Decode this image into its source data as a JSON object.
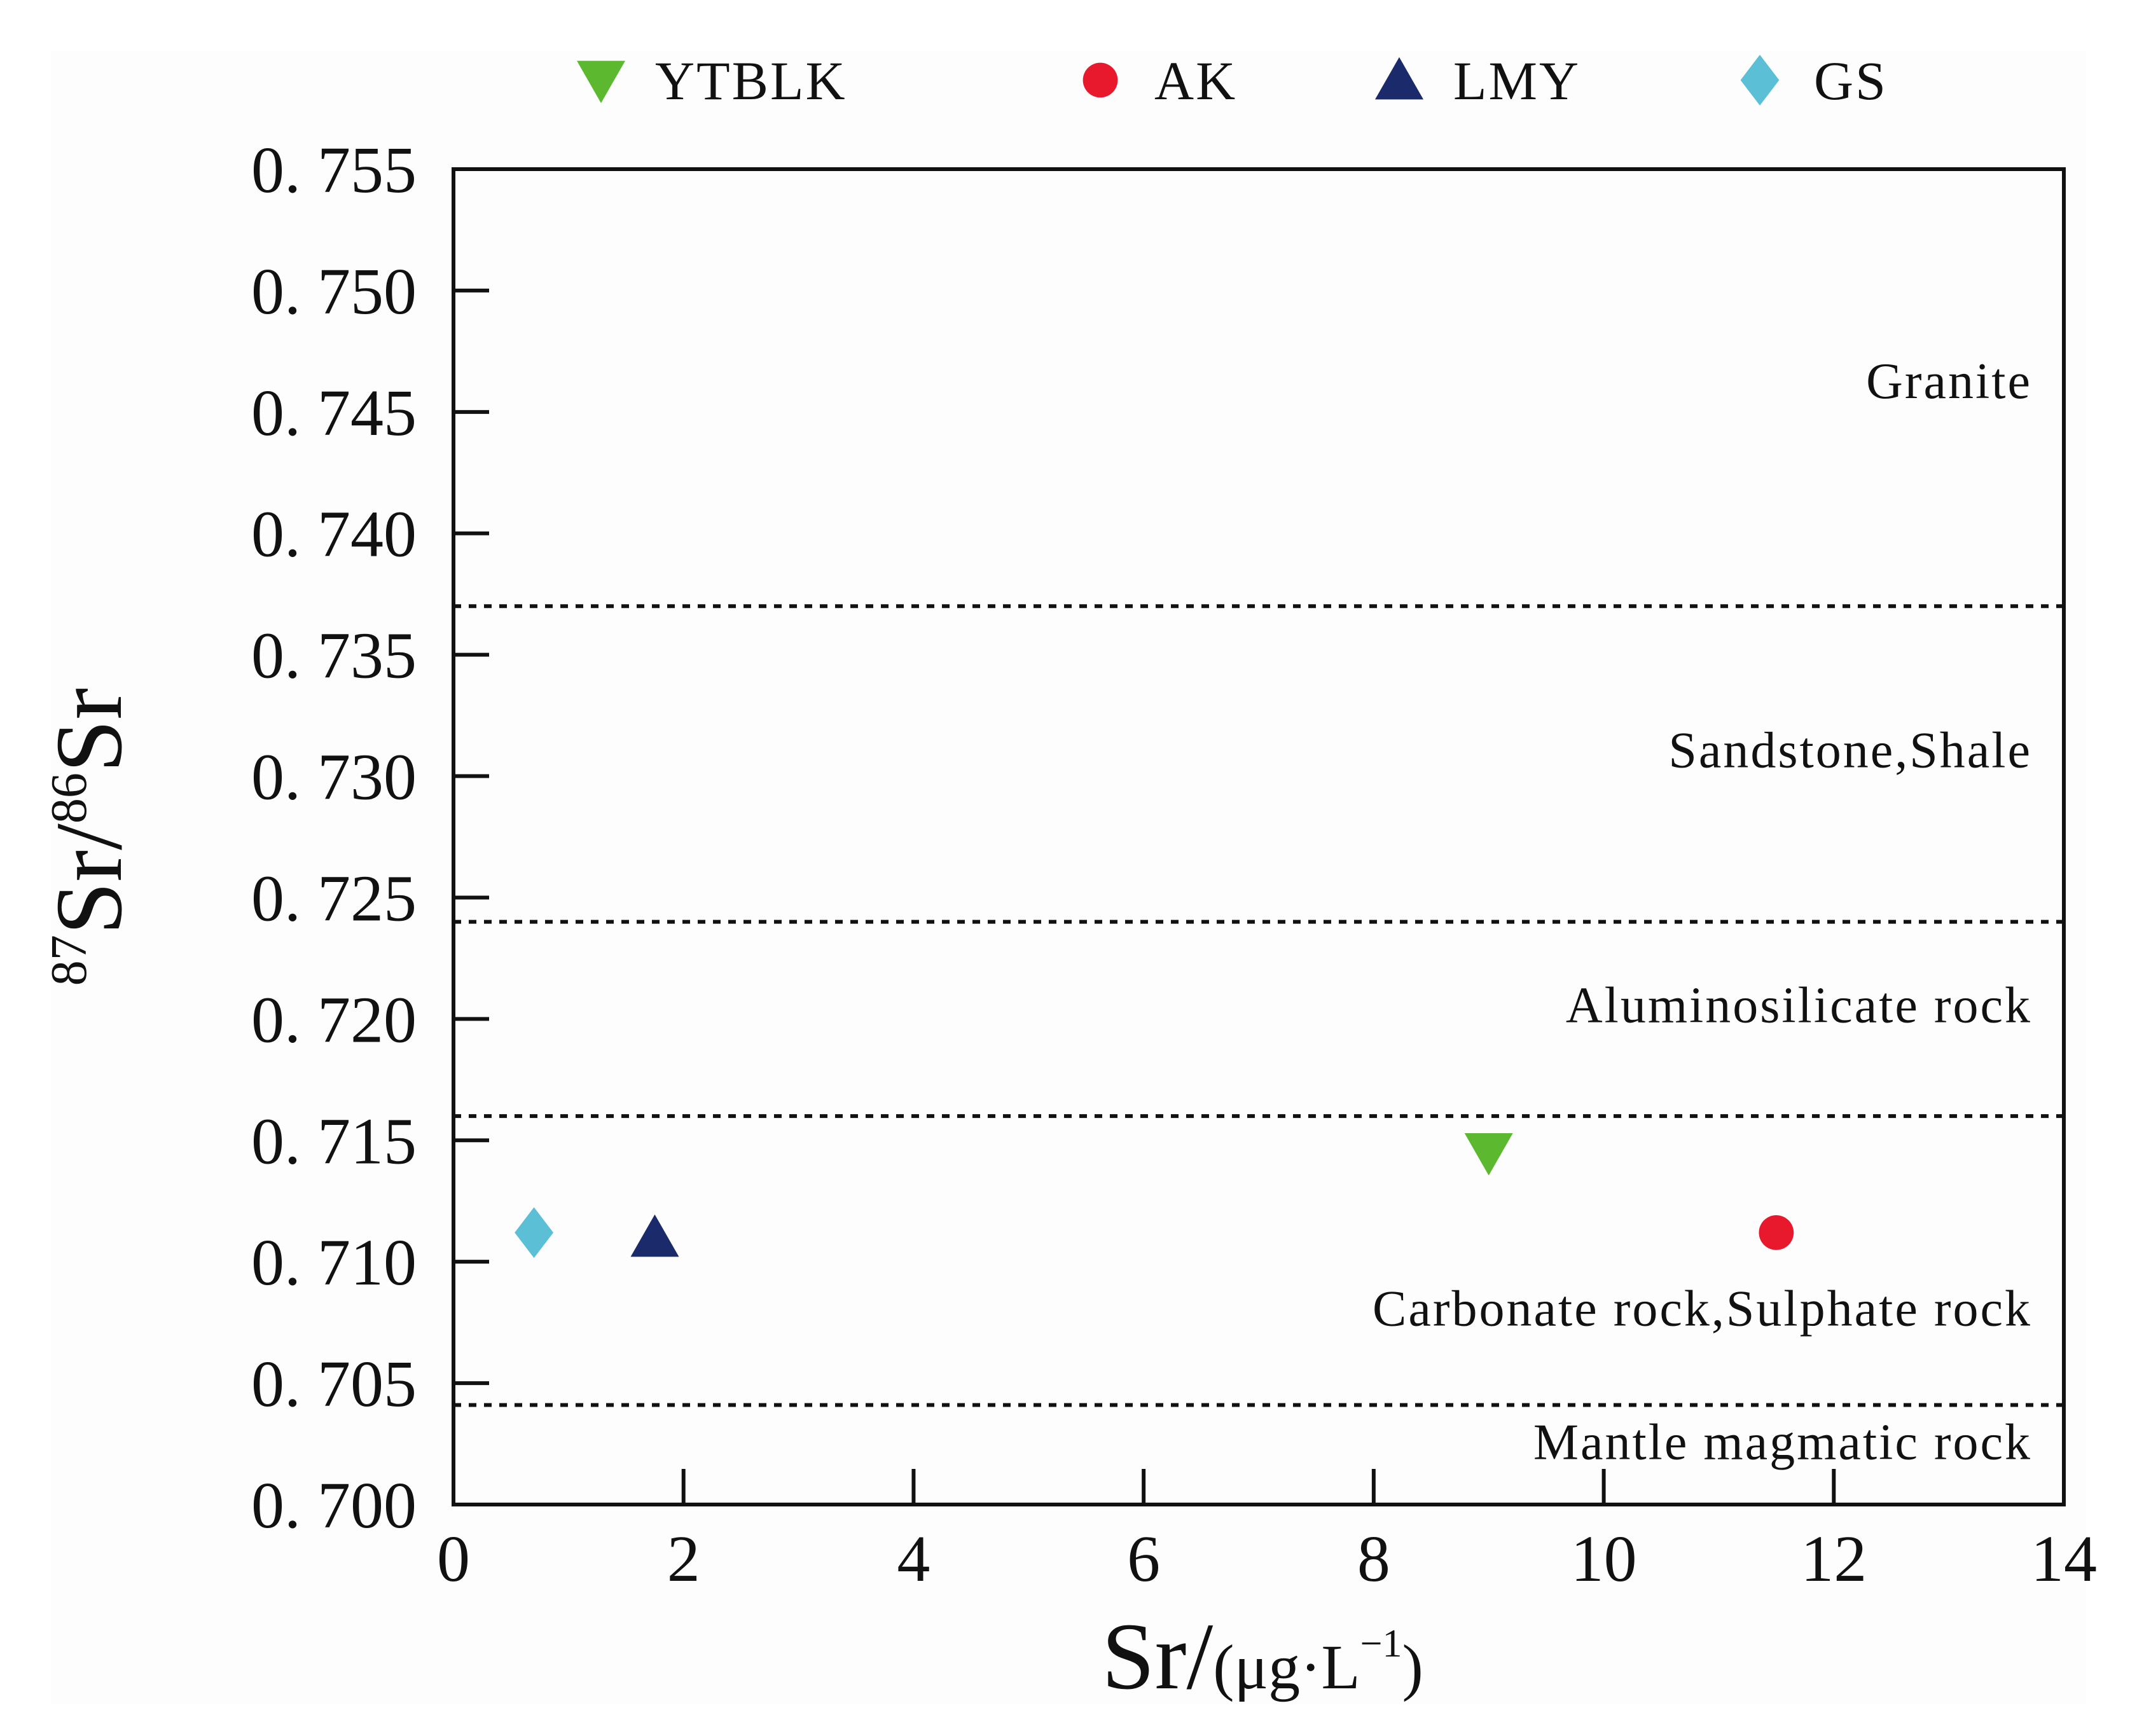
{
  "chart_data": {
    "type": "scatter",
    "title": "",
    "xlabel": {
      "main": "Sr/",
      "unit_prefix": "(μg·L",
      "unit_exponent": "−1",
      "unit_suffix": ")"
    },
    "ylabel": {
      "sup1": "87",
      "part1": "Sr/",
      "sup2": "86",
      "part2": "Sr"
    },
    "xlim": [
      0,
      14
    ],
    "ylim": [
      0.7,
      0.755
    ],
    "x_ticks": [
      0,
      2,
      4,
      6,
      8,
      10,
      12,
      14
    ],
    "x_tick_labels": [
      "0",
      "2",
      "4",
      "6",
      "8",
      "10",
      "12",
      "14"
    ],
    "y_ticks": [
      0.7,
      0.705,
      0.71,
      0.715,
      0.72,
      0.725,
      0.73,
      0.735,
      0.74,
      0.745,
      0.75,
      0.755
    ],
    "y_tick_labels": [
      "0. 700",
      "0. 705",
      "0. 710",
      "0. 715",
      "0. 720",
      "0. 725",
      "0. 730",
      "0. 735",
      "0. 740",
      "0. 745",
      "0. 750",
      "0. 755"
    ],
    "grid": false,
    "legend_position": "top",
    "series": [
      {
        "name": "YTBLK",
        "marker": "triangle-down",
        "color": "#5cb82e",
        "points": [
          {
            "x": 9.0,
            "y": 0.7145
          }
        ]
      },
      {
        "name": "AK",
        "marker": "circle",
        "color": "#e8192c",
        "points": [
          {
            "x": 11.5,
            "y": 0.7112
          }
        ]
      },
      {
        "name": "LMY",
        "marker": "triangle-up",
        "color": "#1b2a6b",
        "points": [
          {
            "x": 1.75,
            "y": 0.711
          }
        ]
      },
      {
        "name": "GS",
        "marker": "diamond",
        "color": "#5bbfd6",
        "points": [
          {
            "x": 0.7,
            "y": 0.7112
          }
        ]
      }
    ],
    "reference_lines": [
      {
        "y": 0.737,
        "style": "dotted"
      },
      {
        "y": 0.724,
        "style": "dotted"
      },
      {
        "y": 0.716,
        "style": "dotted"
      },
      {
        "y": 0.7041,
        "style": "dotted"
      }
    ],
    "zones": [
      {
        "label": "Granite",
        "label_y": 0.7463
      },
      {
        "label": "Sandstone,Shale",
        "label_y": 0.7311
      },
      {
        "label": "Aluminosilicate  rock",
        "label_y": 0.7206
      },
      {
        "label": "Carbonate  rock,Sulphate rock",
        "label_y": 0.7081
      },
      {
        "label": "Mantle magmatic rock",
        "label_y": 0.7026
      }
    ]
  }
}
